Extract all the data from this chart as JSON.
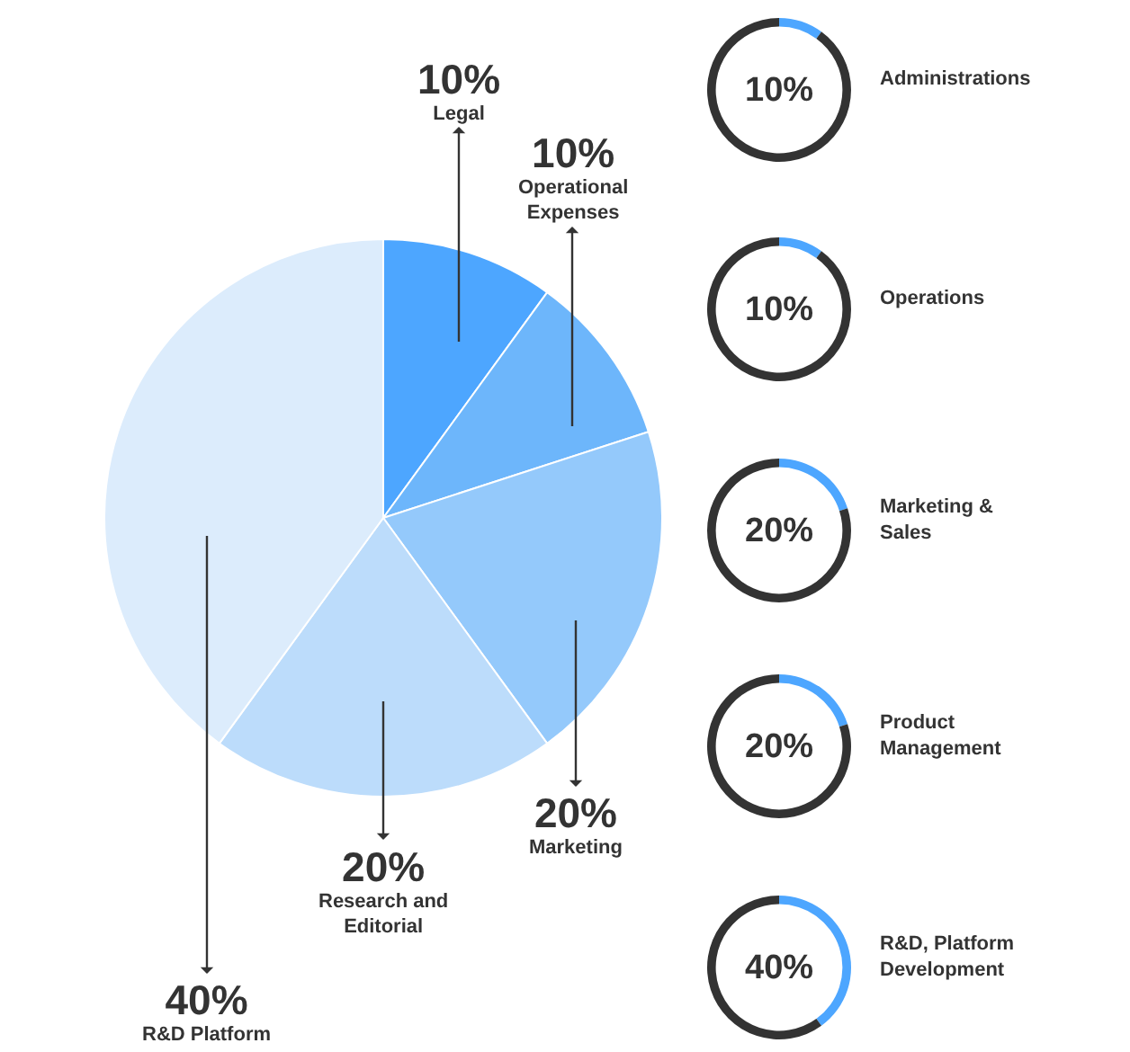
{
  "chart_data": [
    {
      "type": "pie",
      "categories": [
        "Legal",
        "Operational Expenses",
        "Marketing",
        "Research and Editorial",
        "R&D Platform"
      ],
      "values": [
        10,
        10,
        20,
        20,
        40
      ],
      "colors": [
        "#4da6ff",
        "#6db6fb",
        "#94c9fb",
        "#bcdcfb",
        "#dcecfc"
      ],
      "value_labels": [
        "10%",
        "10%",
        "20%",
        "20%",
        "40%"
      ]
    },
    {
      "type": "donut",
      "title": "Administrations",
      "categories": [
        null,
        null
      ],
      "values": [
        10,
        90
      ],
      "colors": [
        "#4da6ff",
        "#333333"
      ],
      "annotations": [
        "10%"
      ]
    },
    {
      "type": "donut",
      "title": "Operations",
      "categories": [
        null,
        null
      ],
      "values": [
        10,
        90
      ],
      "colors": [
        "#4da6ff",
        "#333333"
      ],
      "annotations": [
        "10%"
      ]
    },
    {
      "type": "donut",
      "title": "Marketing & Sales",
      "categories": [
        null,
        null
      ],
      "values": [
        20,
        80
      ],
      "colors": [
        "#4da6ff",
        "#333333"
      ],
      "annotations": [
        "20%"
      ]
    },
    {
      "type": "donut",
      "title": "Product Management",
      "categories": [
        null,
        null
      ],
      "values": [
        20,
        80
      ],
      "colors": [
        "#4da6ff",
        "#333333"
      ],
      "annotations": [
        "20%"
      ]
    },
    {
      "type": "donut",
      "title": "R&D, Platform Development",
      "categories": [
        null,
        null
      ],
      "values": [
        40,
        60
      ],
      "colors": [
        "#4da6ff",
        "#333333"
      ],
      "annotations": [
        "40%"
      ]
    }
  ]
}
